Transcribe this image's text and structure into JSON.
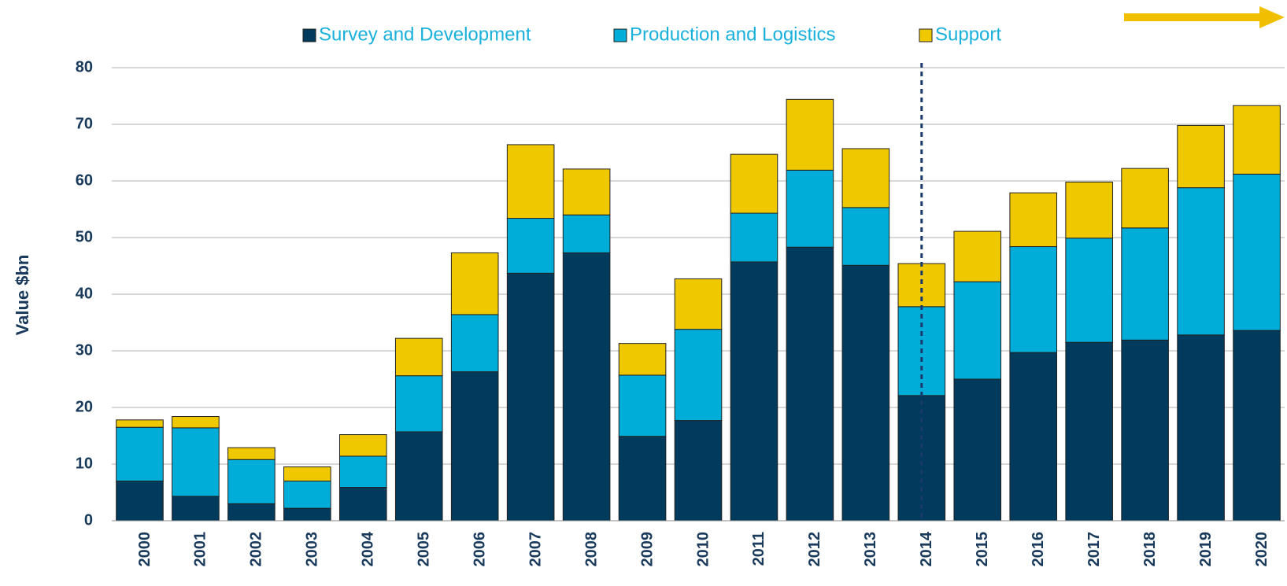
{
  "chart_data": {
    "type": "bar",
    "stacked": true,
    "ylabel": "Value $bn",
    "categories": [
      "2000",
      "2001",
      "2002",
      "2003",
      "2004",
      "2005",
      "2006",
      "2007",
      "2008",
      "2009",
      "2010",
      "2011",
      "2012",
      "2013",
      "2014",
      "2015",
      "2016",
      "2017",
      "2018",
      "2019",
      "2020"
    ],
    "series": [
      {
        "name": "Survey and Development",
        "color": "#003a5c",
        "values": [
          7.0,
          4.3,
          3.0,
          2.2,
          5.9,
          15.7,
          26.3,
          43.7,
          47.3,
          14.9,
          17.7,
          45.7,
          48.3,
          45.1,
          22.1,
          25.0,
          29.7,
          31.5,
          31.9,
          32.8,
          33.6
        ]
      },
      {
        "name": "Production and Logistics",
        "color": "#00acd8",
        "values": [
          9.5,
          12.1,
          7.8,
          4.8,
          5.5,
          9.9,
          10.1,
          9.7,
          6.7,
          10.8,
          16.1,
          8.6,
          13.6,
          10.2,
          15.7,
          17.2,
          18.7,
          18.4,
          19.8,
          26.0,
          27.6
        ]
      },
      {
        "name": "Support",
        "color": "#f0c800",
        "values": [
          1.3,
          2.0,
          2.1,
          2.5,
          3.8,
          6.6,
          10.9,
          13.0,
          8.1,
          5.6,
          8.9,
          10.4,
          12.5,
          10.4,
          7.6,
          8.9,
          9.5,
          9.9,
          10.5,
          11.0,
          12.1
        ]
      }
    ],
    "ylim": [
      0,
      80
    ],
    "yticks": [
      0,
      10,
      20,
      30,
      40,
      50,
      60,
      70,
      80
    ],
    "grid": true,
    "legend": "top"
  }
}
